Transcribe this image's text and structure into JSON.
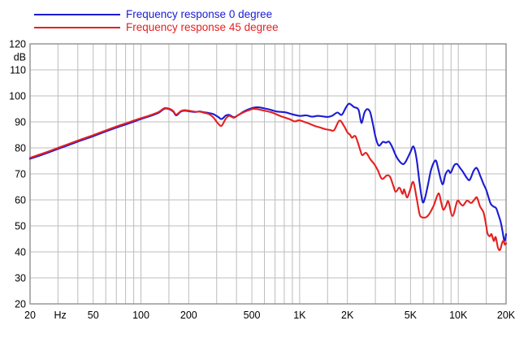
{
  "legend": {
    "items": [
      {
        "label": "Frequency response 0 degree",
        "color": "#1b1bd4"
      },
      {
        "label": "Frequency response 45 degree",
        "color": "#e52020"
      }
    ]
  },
  "colors": {
    "blue_curve": "#1b1bd4",
    "red_curve": "#e52020",
    "gridline": "#bcbcbc",
    "frame": "#909090",
    "text": "#000000",
    "background": "#ffffff"
  },
  "chart_data": {
    "type": "line",
    "title": "",
    "xlabel": "Hz",
    "ylabel": "dB",
    "x_axis": {
      "scale": "log",
      "min": 20,
      "max": 20000,
      "unit": "Hz",
      "gridlines": [
        20,
        30,
        40,
        50,
        60,
        70,
        80,
        90,
        100,
        150,
        200,
        300,
        400,
        500,
        600,
        700,
        800,
        900,
        1000,
        1500,
        2000,
        3000,
        4000,
        5000,
        6000,
        7000,
        8000,
        9000,
        10000,
        15000,
        20000
      ],
      "tick_labels": [
        {
          "f": 20,
          "label": "20"
        },
        {
          "f": 31,
          "label": "Hz"
        },
        {
          "f": 50,
          "label": "50"
        },
        {
          "f": 100,
          "label": "100"
        },
        {
          "f": 200,
          "label": "200"
        },
        {
          "f": 500,
          "label": "500"
        },
        {
          "f": 1000,
          "label": "1K"
        },
        {
          "f": 2000,
          "label": "2K"
        },
        {
          "f": 5000,
          "label": "5K"
        },
        {
          "f": 10000,
          "label": "10K"
        },
        {
          "f": 20000,
          "label": "20K"
        }
      ]
    },
    "y_axis": {
      "min": 20,
      "max": 120,
      "step": 10,
      "unit": "dB",
      "tick_labels": [
        "120",
        "110",
        "100",
        "90",
        "80",
        "70",
        "60",
        "50",
        "40",
        "30",
        "20"
      ],
      "unit_label": "dB",
      "unit_label_at": 115
    },
    "grid": true,
    "legend_position": "top-left",
    "series": [
      {
        "name": "Frequency response 0 degree",
        "color": "#1b1bd4",
        "points": [
          [
            20,
            75.8
          ],
          [
            25,
            77.8
          ],
          [
            30,
            79.6
          ],
          [
            35,
            81.1
          ],
          [
            40,
            82.4
          ],
          [
            45,
            83.5
          ],
          [
            50,
            84.5
          ],
          [
            60,
            86.3
          ],
          [
            70,
            87.8
          ],
          [
            80,
            89.0
          ],
          [
            90,
            90.1
          ],
          [
            100,
            91.1
          ],
          [
            110,
            91.9
          ],
          [
            120,
            92.7
          ],
          [
            130,
            93.6
          ],
          [
            141,
            95.1
          ],
          [
            152,
            94.8
          ],
          [
            160,
            93.9
          ],
          [
            167,
            92.5
          ],
          [
            178,
            93.9
          ],
          [
            188,
            94.3
          ],
          [
            205,
            94.0
          ],
          [
            220,
            93.8
          ],
          [
            235,
            94.0
          ],
          [
            250,
            93.7
          ],
          [
            268,
            93.4
          ],
          [
            285,
            93.0
          ],
          [
            305,
            92.0
          ],
          [
            322,
            91.1
          ],
          [
            342,
            92.4
          ],
          [
            360,
            92.7
          ],
          [
            385,
            91.8
          ],
          [
            410,
            92.6
          ],
          [
            440,
            93.8
          ],
          [
            470,
            94.7
          ],
          [
            510,
            95.4
          ],
          [
            545,
            95.6
          ],
          [
            600,
            95.2
          ],
          [
            660,
            94.6
          ],
          [
            714,
            94.0
          ],
          [
            810,
            93.7
          ],
          [
            900,
            92.9
          ],
          [
            1000,
            92.3
          ],
          [
            1100,
            92.5
          ],
          [
            1200,
            92.0
          ],
          [
            1300,
            92.3
          ],
          [
            1400,
            92.1
          ],
          [
            1500,
            91.9
          ],
          [
            1600,
            92.3
          ],
          [
            1730,
            93.6
          ],
          [
            1840,
            92.7
          ],
          [
            1950,
            95.3
          ],
          [
            2050,
            97.0
          ],
          [
            2200,
            95.7
          ],
          [
            2350,
            94.7
          ],
          [
            2450,
            89.6
          ],
          [
            2560,
            93.5
          ],
          [
            2660,
            94.9
          ],
          [
            2780,
            93.8
          ],
          [
            2900,
            89.0
          ],
          [
            3000,
            84.5
          ],
          [
            3150,
            80.9
          ],
          [
            3350,
            82.3
          ],
          [
            3500,
            82.0
          ],
          [
            3650,
            82.4
          ],
          [
            3800,
            80.8
          ],
          [
            4030,
            77.2
          ],
          [
            4200,
            75.3
          ],
          [
            4450,
            73.8
          ],
          [
            4600,
            74.2
          ],
          [
            4800,
            76.2
          ],
          [
            5000,
            78.5
          ],
          [
            5220,
            80.5
          ],
          [
            5450,
            76.0
          ],
          [
            5700,
            66.5
          ],
          [
            5950,
            59.3
          ],
          [
            6150,
            60.5
          ],
          [
            6400,
            65.0
          ],
          [
            6700,
            71.0
          ],
          [
            7000,
            74.3
          ],
          [
            7250,
            75.0
          ],
          [
            7500,
            71.5
          ],
          [
            7950,
            66.0
          ],
          [
            8300,
            69.8
          ],
          [
            8660,
            71.4
          ],
          [
            8950,
            70.4
          ],
          [
            9400,
            73.2
          ],
          [
            9800,
            73.8
          ],
          [
            10250,
            72.3
          ],
          [
            10700,
            70.8
          ],
          [
            11300,
            68.5
          ],
          [
            11800,
            67.7
          ],
          [
            12500,
            71.2
          ],
          [
            13100,
            72.2
          ],
          [
            13800,
            69.0
          ],
          [
            14400,
            66.2
          ],
          [
            15000,
            63.8
          ],
          [
            15500,
            61.0
          ],
          [
            16000,
            58.5
          ],
          [
            16600,
            57.5
          ],
          [
            17300,
            56.8
          ],
          [
            17900,
            54.3
          ],
          [
            18500,
            51.5
          ],
          [
            19000,
            48.0
          ],
          [
            19400,
            44.8
          ],
          [
            19700,
            44.5
          ],
          [
            20000,
            46.8
          ]
        ]
      },
      {
        "name": "Frequency response 45 degree",
        "color": "#e52020",
        "points": [
          [
            20,
            76.2
          ],
          [
            25,
            78.2
          ],
          [
            30,
            80.0
          ],
          [
            35,
            81.5
          ],
          [
            40,
            82.8
          ],
          [
            45,
            83.9
          ],
          [
            50,
            84.9
          ],
          [
            60,
            86.7
          ],
          [
            70,
            88.2
          ],
          [
            80,
            89.4
          ],
          [
            90,
            90.5
          ],
          [
            100,
            91.4
          ],
          [
            110,
            92.2
          ],
          [
            120,
            93.0
          ],
          [
            130,
            93.9
          ],
          [
            141,
            95.3
          ],
          [
            152,
            95.0
          ],
          [
            160,
            94.1
          ],
          [
            167,
            92.8
          ],
          [
            178,
            94.1
          ],
          [
            188,
            94.5
          ],
          [
            205,
            94.2
          ],
          [
            220,
            93.9
          ],
          [
            235,
            93.9
          ],
          [
            250,
            93.5
          ],
          [
            268,
            93.0
          ],
          [
            285,
            91.8
          ],
          [
            305,
            89.5
          ],
          [
            322,
            88.5
          ],
          [
            342,
            91.2
          ],
          [
            360,
            92.3
          ],
          [
            385,
            91.6
          ],
          [
            410,
            92.6
          ],
          [
            440,
            93.6
          ],
          [
            470,
            94.3
          ],
          [
            510,
            95.0
          ],
          [
            550,
            94.8
          ],
          [
            600,
            94.3
          ],
          [
            670,
            93.6
          ],
          [
            760,
            92.2
          ],
          [
            860,
            91.1
          ],
          [
            930,
            90.2
          ],
          [
            990,
            90.6
          ],
          [
            1060,
            90.1
          ],
          [
            1150,
            89.3
          ],
          [
            1250,
            88.4
          ],
          [
            1350,
            87.8
          ],
          [
            1450,
            87.2
          ],
          [
            1550,
            86.9
          ],
          [
            1650,
            86.8
          ],
          [
            1780,
            90.5
          ],
          [
            1900,
            88.5
          ],
          [
            2000,
            86.0
          ],
          [
            2080,
            85.0
          ],
          [
            2140,
            83.9
          ],
          [
            2250,
            84.4
          ],
          [
            2400,
            79.5
          ],
          [
            2480,
            77.2
          ],
          [
            2620,
            78.1
          ],
          [
            2800,
            75.5
          ],
          [
            2950,
            73.8
          ],
          [
            3110,
            71.4
          ],
          [
            3300,
            68.1
          ],
          [
            3550,
            69.4
          ],
          [
            3720,
            68.8
          ],
          [
            3900,
            65.3
          ],
          [
            4030,
            63.1
          ],
          [
            4260,
            64.7
          ],
          [
            4450,
            62.3
          ],
          [
            4560,
            64.0
          ],
          [
            4750,
            60.9
          ],
          [
            4950,
            63.5
          ],
          [
            5200,
            66.9
          ],
          [
            5450,
            61.0
          ],
          [
            5700,
            54.5
          ],
          [
            5900,
            53.3
          ],
          [
            6100,
            53.2
          ],
          [
            6300,
            53.4
          ],
          [
            6550,
            54.5
          ],
          [
            7000,
            57.8
          ],
          [
            7500,
            62.5
          ],
          [
            7800,
            59.0
          ],
          [
            8050,
            56.2
          ],
          [
            8400,
            58.0
          ],
          [
            8660,
            59.4
          ],
          [
            9200,
            53.8
          ],
          [
            9850,
            59.5
          ],
          [
            10300,
            58.6
          ],
          [
            10700,
            57.8
          ],
          [
            11350,
            59.7
          ],
          [
            12050,
            58.8
          ],
          [
            12600,
            60.0
          ],
          [
            13100,
            60.9
          ],
          [
            13700,
            57.5
          ],
          [
            14400,
            55.3
          ],
          [
            14900,
            51.0
          ],
          [
            15300,
            47.0
          ],
          [
            15800,
            46.0
          ],
          [
            16200,
            46.8
          ],
          [
            16750,
            44.2
          ],
          [
            17200,
            45.7
          ],
          [
            17800,
            41.5
          ],
          [
            18350,
            40.8
          ],
          [
            18900,
            43.5
          ],
          [
            19300,
            44.2
          ],
          [
            19650,
            42.8
          ],
          [
            20000,
            43.3
          ]
        ]
      }
    ]
  }
}
